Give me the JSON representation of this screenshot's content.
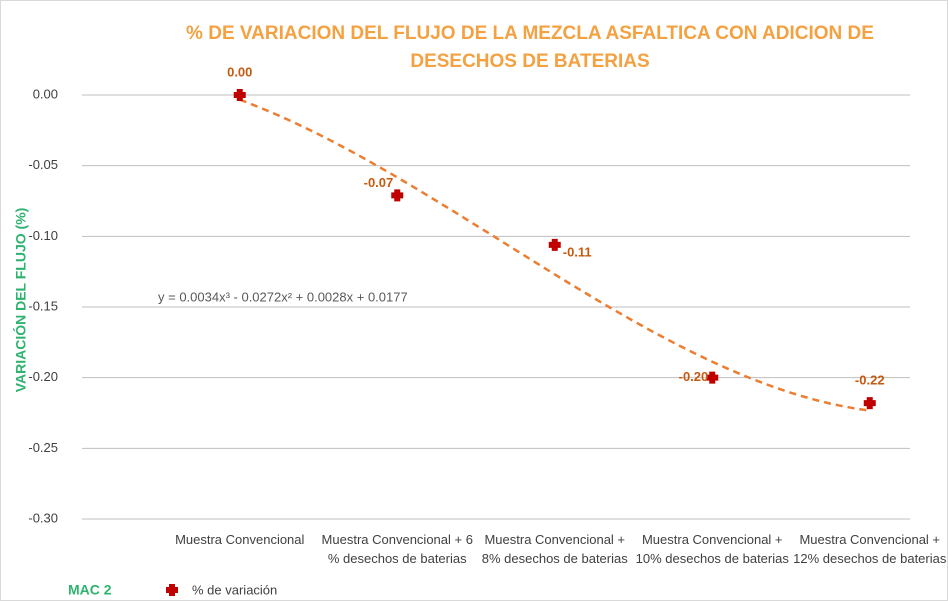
{
  "chart_data": {
    "type": "scatter",
    "title": "% DE VARIACION DEL FLUJO DE LA MEZCLA ASFALTICA CON ADICION DE DESECHOS DE BATERIAS",
    "y_label": "VARIACIÓN DEL FLUJO (%)",
    "group_label": "MAC 2",
    "categories": [
      "Muestra Convencional",
      "Muestra Convencional + 6 % desechos de baterias",
      "Muestra Convencional + 8% desechos de baterias",
      "Muestra Convencional + 10% desechos de baterias",
      "Muestra Convencional + 12% desechos de baterias"
    ],
    "series": [
      {
        "name": "% de variación",
        "color": "#c00000",
        "values": [
          0.0,
          -0.071,
          -0.106,
          -0.2,
          -0.218
        ],
        "value_labels": [
          "0.00",
          "-0.07",
          "-0.11",
          "-0.20",
          "-0.22"
        ]
      }
    ],
    "trendline": {
      "equation": "y = 0.0034x³ - 0.0272x² + 0.0028x + 0.0177",
      "coefficients": [
        0.0034,
        -0.0272,
        0.0028,
        0.0177
      ],
      "color": "#ed7d31"
    },
    "ylim": [
      -0.3,
      0.0
    ],
    "yticks": [
      {
        "value": 0.0,
        "label": "0.00"
      },
      {
        "value": -0.05,
        "label": "-0.05"
      },
      {
        "value": -0.1,
        "label": "-0.10"
      },
      {
        "value": -0.15,
        "label": "-0.15"
      },
      {
        "value": -0.2,
        "label": "-0.20"
      },
      {
        "value": -0.25,
        "label": "-0.25"
      },
      {
        "value": -0.3,
        "label": "-0.30"
      }
    ],
    "grid": true
  }
}
